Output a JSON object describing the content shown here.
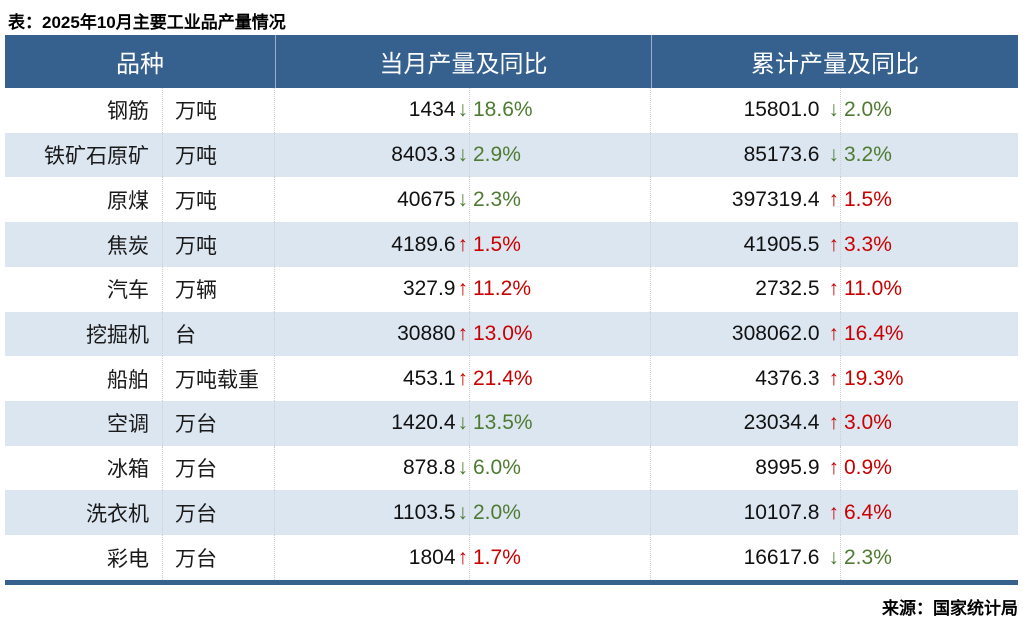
{
  "chart_data": {
    "type": "table",
    "title": "表：2025年10月主要工业品产量情况",
    "source": "来源：国家统计局",
    "headers": [
      "品种",
      "当月产量及同比",
      "累计产量及同比"
    ],
    "rows": [
      {
        "name": "钢筋",
        "unit": "万吨",
        "monthly": {
          "value": "1434",
          "arrow": "↓",
          "pct": "18.6%",
          "trend": "down"
        },
        "cumulative": {
          "value": "15801.0",
          "arrow": "↓",
          "pct": "2.0%",
          "trend": "down"
        }
      },
      {
        "name": "铁矿石原矿",
        "unit": "万吨",
        "monthly": {
          "value": "8403.3",
          "arrow": "↓",
          "pct": "2.9%",
          "trend": "down"
        },
        "cumulative": {
          "value": "85173.6",
          "arrow": "↓",
          "pct": "3.2%",
          "trend": "down"
        }
      },
      {
        "name": "原煤",
        "unit": "万吨",
        "monthly": {
          "value": "40675",
          "arrow": "↓",
          "pct": "2.3%",
          "trend": "down"
        },
        "cumulative": {
          "value": "397319.4",
          "arrow": "↑",
          "pct": "1.5%",
          "trend": "up"
        }
      },
      {
        "name": "焦炭",
        "unit": "万吨",
        "monthly": {
          "value": "4189.6",
          "arrow": "↑",
          "pct": "1.5%",
          "trend": "up"
        },
        "cumulative": {
          "value": "41905.5",
          "arrow": "↑",
          "pct": "3.3%",
          "trend": "up"
        }
      },
      {
        "name": "汽车",
        "unit": "万辆",
        "monthly": {
          "value": "327.9",
          "arrow": "↑",
          "pct": "11.2%",
          "trend": "up"
        },
        "cumulative": {
          "value": "2732.5",
          "arrow": "↑",
          "pct": "11.0%",
          "trend": "up"
        }
      },
      {
        "name": "挖掘机",
        "unit": "台",
        "monthly": {
          "value": "30880",
          "arrow": "↑",
          "pct": "13.0%",
          "trend": "up"
        },
        "cumulative": {
          "value": "308062.0",
          "arrow": "↑",
          "pct": "16.4%",
          "trend": "up"
        }
      },
      {
        "name": "船舶",
        "unit": "万吨载重",
        "monthly": {
          "value": "453.1",
          "arrow": "↑",
          "pct": "21.4%",
          "trend": "up"
        },
        "cumulative": {
          "value": "4376.3",
          "arrow": "↑",
          "pct": "19.3%",
          "trend": "up"
        }
      },
      {
        "name": "空调",
        "unit": "万台",
        "monthly": {
          "value": "1420.4",
          "arrow": "↓",
          "pct": "13.5%",
          "trend": "down"
        },
        "cumulative": {
          "value": "23034.4",
          "arrow": "↑",
          "pct": "3.0%",
          "trend": "up"
        }
      },
      {
        "name": "冰箱",
        "unit": "万台",
        "monthly": {
          "value": "878.8",
          "arrow": "↓",
          "pct": "6.0%",
          "trend": "down"
        },
        "cumulative": {
          "value": "8995.9",
          "arrow": "↑",
          "pct": "0.9%",
          "trend": "up"
        }
      },
      {
        "name": "洗衣机",
        "unit": "万台",
        "monthly": {
          "value": "1103.5",
          "arrow": "↓",
          "pct": "2.0%",
          "trend": "down"
        },
        "cumulative": {
          "value": "10107.8",
          "arrow": "↑",
          "pct": "6.4%",
          "trend": "up"
        }
      },
      {
        "name": "彩电",
        "unit": "万台",
        "monthly": {
          "value": "1804",
          "arrow": "↑",
          "pct": "1.7%",
          "trend": "up"
        },
        "cumulative": {
          "value": "16617.6",
          "arrow": "↓",
          "pct": "2.3%",
          "trend": "down"
        }
      }
    ]
  },
  "colors": {
    "header_bg": "#36618F",
    "row_alt": "#DCE6F1",
    "up": "#C90000",
    "down": "#4E7B31",
    "grid": "#CFCFCF"
  }
}
